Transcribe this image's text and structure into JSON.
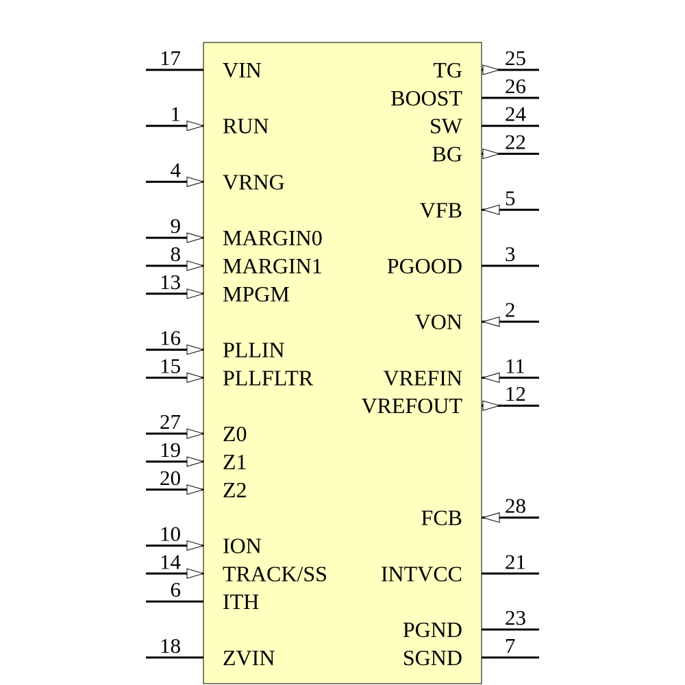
{
  "symbol": {
    "left_pins": [
      {
        "number": 17,
        "name": "VIN"
      },
      {
        "number": 1,
        "name": "RUN"
      },
      {
        "number": 4,
        "name": "VRNG"
      },
      {
        "number": 9,
        "name": "MARGIN0"
      },
      {
        "number": 8,
        "name": "MARGIN1"
      },
      {
        "number": 13,
        "name": "MPGM"
      },
      {
        "number": 16,
        "name": "PLLIN"
      },
      {
        "number": 15,
        "name": "PLLFLTR"
      },
      {
        "number": 27,
        "name": "Z0"
      },
      {
        "number": 19,
        "name": "Z1"
      },
      {
        "number": 20,
        "name": "Z2"
      },
      {
        "number": 10,
        "name": "ION"
      },
      {
        "number": 14,
        "name": "TRACK/SS"
      },
      {
        "number": 6,
        "name": "ITH"
      },
      {
        "number": 18,
        "name": "ZVIN"
      }
    ],
    "right_pins": [
      {
        "number": 25,
        "name": "TG"
      },
      {
        "number": 26,
        "name": "BOOST"
      },
      {
        "number": 24,
        "name": "SW"
      },
      {
        "number": 22,
        "name": "BG"
      },
      {
        "number": 5,
        "name": "VFB"
      },
      {
        "number": 3,
        "name": "PGOOD"
      },
      {
        "number": 2,
        "name": "VON"
      },
      {
        "number": 11,
        "name": "VREFIN"
      },
      {
        "number": 12,
        "name": "VREFOUT"
      },
      {
        "number": 28,
        "name": "FCB"
      },
      {
        "number": 21,
        "name": "INTVCC"
      },
      {
        "number": 23,
        "name": "PGND"
      },
      {
        "number": 7,
        "name": "SGND"
      }
    ]
  }
}
